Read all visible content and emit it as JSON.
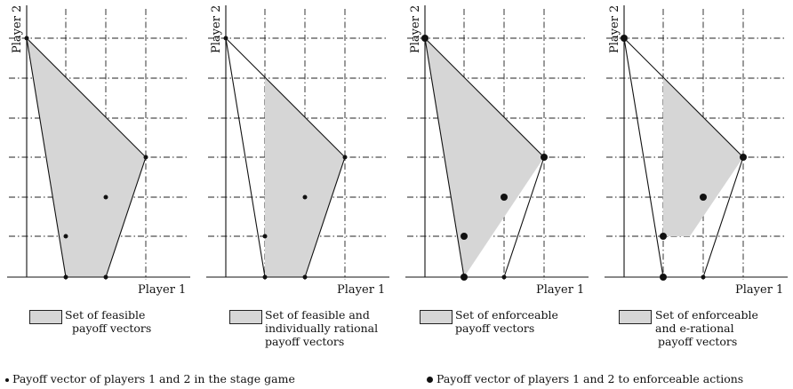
{
  "panels": [
    {
      "ylabel": "Player 2",
      "xlabel": "Player 1",
      "legend_lines": [
        "Set of feasible",
        "payoff vectors"
      ]
    },
    {
      "ylabel": "Player 2",
      "xlabel": "Player 1",
      "legend_lines": [
        "Set of feasible and",
        "individually rational",
        "payoff vectors"
      ]
    },
    {
      "ylabel": "Player 2",
      "xlabel": "Player 1",
      "legend_lines": [
        "Set of enforceable",
        "payoff vectors"
      ]
    },
    {
      "ylabel": "Player 2",
      "xlabel": "Player 1",
      "legend_lines": [
        "Set of enforceable",
        "and e-rational",
        "payoff vectors"
      ]
    }
  ],
  "footnotes": {
    "small": "Payoff vector of players 1 and 2 in the stage game",
    "large": "Payoff vector of players 1 and 2 to enforceable actions"
  },
  "colors": {
    "region_fill": "#d6d6d6",
    "ink": "#111111"
  }
}
